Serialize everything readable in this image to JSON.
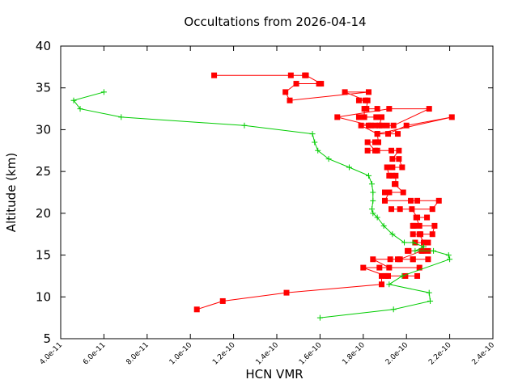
{
  "chart_data": {
    "type": "line",
    "title": "Occultations from 2026-04-14",
    "xlabel": "HCN VMR",
    "ylabel": "Altitude (km)",
    "xlim": [
      4e-11,
      2.4e-10
    ],
    "ylim": [
      5,
      40
    ],
    "x_ticks": [
      4e-11,
      6e-11,
      8e-11,
      1e-10,
      1.2e-10,
      1.4e-10,
      1.6e-10,
      1.8e-10,
      2e-10,
      2.2e-10,
      2.4e-10
    ],
    "x_tick_labels": [
      "4.0e-11",
      "6.0e-11",
      "8.0e-11",
      "1.0e-10",
      "1.2e-10",
      "1.4e-10",
      "1.6e-10",
      "1.8e-10",
      "2.0e-10",
      "2.2e-10",
      "2.4e-10"
    ],
    "y_ticks": [
      5,
      10,
      15,
      20,
      25,
      30,
      35,
      40
    ],
    "y_tick_labels": [
      "5",
      "10",
      "15",
      "20",
      "25",
      "30",
      "35",
      "40"
    ],
    "grid": false,
    "series": [
      {
        "color": "#ff0000",
        "marker": "square",
        "x": [
          1.11e-10,
          1.465e-10,
          1.53e-10,
          1.535e-10,
          1.605e-10,
          1.595e-10,
          1.49e-10,
          1.44e-10,
          1.46e-10,
          1.825e-10,
          1.715e-10,
          1.81e-10,
          1.78e-10,
          1.82e-10,
          1.815e-10,
          1.865e-10,
          1.805e-10,
          1.805e-10,
          1.78e-10,
          1.86e-10,
          1.885e-10,
          1.875e-10,
          1.825e-10,
          1.855e-10,
          1.91e-10,
          1.885e-10,
          1.94e-10,
          2.105e-10,
          1.92e-10,
          1.68e-10,
          1.835e-10,
          1.79e-10,
          1.865e-10,
          2.21e-10,
          2e-10,
          1.915e-10,
          1.96e-10,
          1.865e-10,
          1.87e-10,
          1.855e-10,
          1.865e-10,
          1.82e-10,
          1.855e-10,
          1.82e-10,
          1.865e-10,
          1.93e-10,
          1.965e-10,
          1.935e-10,
          1.965e-10,
          1.98e-10,
          1.935e-10,
          1.91e-10,
          1.92e-10,
          1.935e-10,
          1.95e-10,
          1.95e-10,
          1.945e-10,
          1.985e-10,
          1.92e-10,
          1.9e-10,
          1.92e-10,
          1.9e-10,
          2.05e-10,
          2.02e-10,
          2.15e-10,
          2.12e-10,
          1.97e-10,
          1.93e-10,
          2.025e-10,
          2.05e-10,
          2.095e-10,
          2.045e-10,
          2.06e-10,
          2.035e-10,
          2.03e-10,
          2.13e-10,
          2.12e-10,
          2.03e-10,
          2.065e-10,
          2.06e-10,
          2.08e-10,
          2.04e-10,
          2.1e-10,
          2.08e-10,
          2.075e-10,
          2.01e-10,
          2.005e-10,
          2.1e-10,
          2.07e-10,
          1.97e-10,
          2.03e-10,
          2.1e-10,
          2.03e-10,
          1.96e-10,
          1.925e-10,
          1.845e-10,
          1.92e-10,
          2.06e-10,
          1.875e-10,
          1.8e-10,
          1.905e-10,
          2.05e-10,
          1.995e-10,
          1.915e-10,
          1.885e-10,
          1.885e-10,
          1.445e-10,
          1.15e-10,
          1.03e-10
        ],
        "y": [
          36.5,
          36.5,
          36.5,
          36.5,
          35.5,
          35.5,
          35.5,
          34.5,
          33.5,
          34.5,
          34.5,
          33.5,
          33.5,
          33.5,
          32.5,
          32.5,
          32.5,
          31.5,
          31.5,
          31.5,
          31.5,
          30.5,
          30.5,
          30.5,
          30.5,
          30.5,
          30.5,
          32.5,
          32.5,
          31.5,
          30.5,
          30.5,
          29.5,
          31.5,
          30.5,
          29.5,
          29.5,
          29.5,
          28.5,
          28.5,
          28.5,
          28.5,
          27.5,
          27.5,
          27.5,
          27.5,
          27.5,
          26.5,
          26.5,
          25.5,
          25.5,
          25.5,
          24.5,
          24.5,
          24.5,
          23.5,
          23.5,
          22.5,
          22.5,
          22.5,
          22.5,
          21.5,
          21.5,
          21.5,
          21.5,
          20.5,
          20.5,
          20.5,
          20.5,
          19.5,
          19.5,
          19.5,
          18.5,
          18.5,
          18.5,
          18.5,
          17.5,
          17.5,
          17.5,
          17.5,
          16.5,
          16.5,
          16.5,
          16.5,
          15.5,
          15.5,
          15.5,
          15.5,
          15.5,
          14.5,
          14.5,
          14.5,
          14.5,
          14.5,
          14.5,
          14.5,
          13.5,
          13.5,
          13.5,
          13.5,
          12.5,
          12.5,
          12.5,
          12.5,
          12.5,
          11.5,
          10.5,
          9.5,
          8.5
        ]
      },
      {
        "color": "#00cc00",
        "marker": "plus",
        "x": [
          6e-11,
          4.6e-11,
          4.9e-11,
          6.8e-11,
          1.25e-10,
          1.565e-10,
          1.575e-10,
          1.59e-10,
          1.64e-10,
          1.735e-10,
          1.825e-10,
          1.84e-10,
          1.845e-10,
          1.845e-10,
          1.84e-10,
          1.845e-10,
          1.865e-10,
          1.895e-10,
          1.935e-10,
          1.99e-10,
          2.03e-10,
          2.08e-10,
          2.04e-10,
          2.125e-10,
          2.195e-10,
          2.2e-10,
          1.98e-10,
          1.92e-10,
          2.105e-10,
          2.11e-10,
          1.94e-10,
          1.6e-10
        ],
        "y": [
          34.5,
          33.5,
          32.5,
          31.5,
          30.5,
          29.5,
          28.5,
          27.5,
          26.5,
          25.5,
          24.5,
          23.5,
          22.5,
          21.5,
          20.5,
          20.0,
          19.5,
          18.5,
          17.5,
          16.5,
          16.5,
          16.0,
          15.5,
          15.5,
          15.0,
          14.5,
          12.5,
          11.5,
          10.5,
          9.5,
          8.5,
          7.5
        ]
      }
    ]
  }
}
